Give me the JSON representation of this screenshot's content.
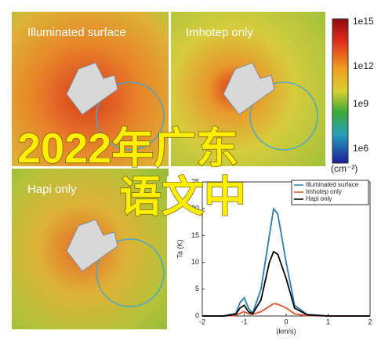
{
  "panels": [
    {
      "label": "Illuminated surface"
    },
    {
      "label": "Imhotep only"
    },
    {
      "label": "Hapi only"
    }
  ],
  "colorbar": {
    "ticks": [
      "1e15",
      "1e12",
      "1e9",
      "1e6"
    ],
    "unit": "(cm⁻²)"
  },
  "overlay": {
    "line1": "2022年广东",
    "line2": "语文中"
  },
  "chart_data": {
    "type": "line",
    "xlabel": "(km/s)",
    "ylabel": "Ta (K)",
    "xlim": [
      -2,
      2
    ],
    "xticks": [
      -2,
      -1,
      0,
      1,
      2
    ],
    "ylim": [
      0,
      25
    ],
    "yticks": [
      0,
      5,
      10,
      15,
      20,
      25
    ],
    "legend": "upper right",
    "x": [
      -2,
      -1.5,
      -1.2,
      -1.1,
      -1.0,
      -0.9,
      -0.8,
      -0.6,
      -0.4,
      -0.3,
      -0.2,
      0,
      0.2,
      0.5,
      1,
      2
    ],
    "series": [
      {
        "name": "Illuminated surface",
        "color": "#2b7bba",
        "values": [
          0,
          0,
          0.5,
          2.5,
          3.4,
          1.5,
          0.5,
          5,
          15,
          20,
          19,
          10,
          2,
          0.3,
          0,
          0
        ]
      },
      {
        "name": "Imhotep only",
        "color": "#e0522a",
        "values": [
          0,
          0,
          0.1,
          0.5,
          0.8,
          0.4,
          0.3,
          0.8,
          1.8,
          2.3,
          2.2,
          1.5,
          0.4,
          0.05,
          0,
          0
        ]
      },
      {
        "name": "Hapi only",
        "color": "#000000",
        "values": [
          0,
          0,
          0.3,
          1.5,
          2.0,
          0.8,
          0.4,
          3,
          10,
          12,
          11.5,
          7,
          1.5,
          0.2,
          0,
          0
        ]
      }
    ]
  }
}
